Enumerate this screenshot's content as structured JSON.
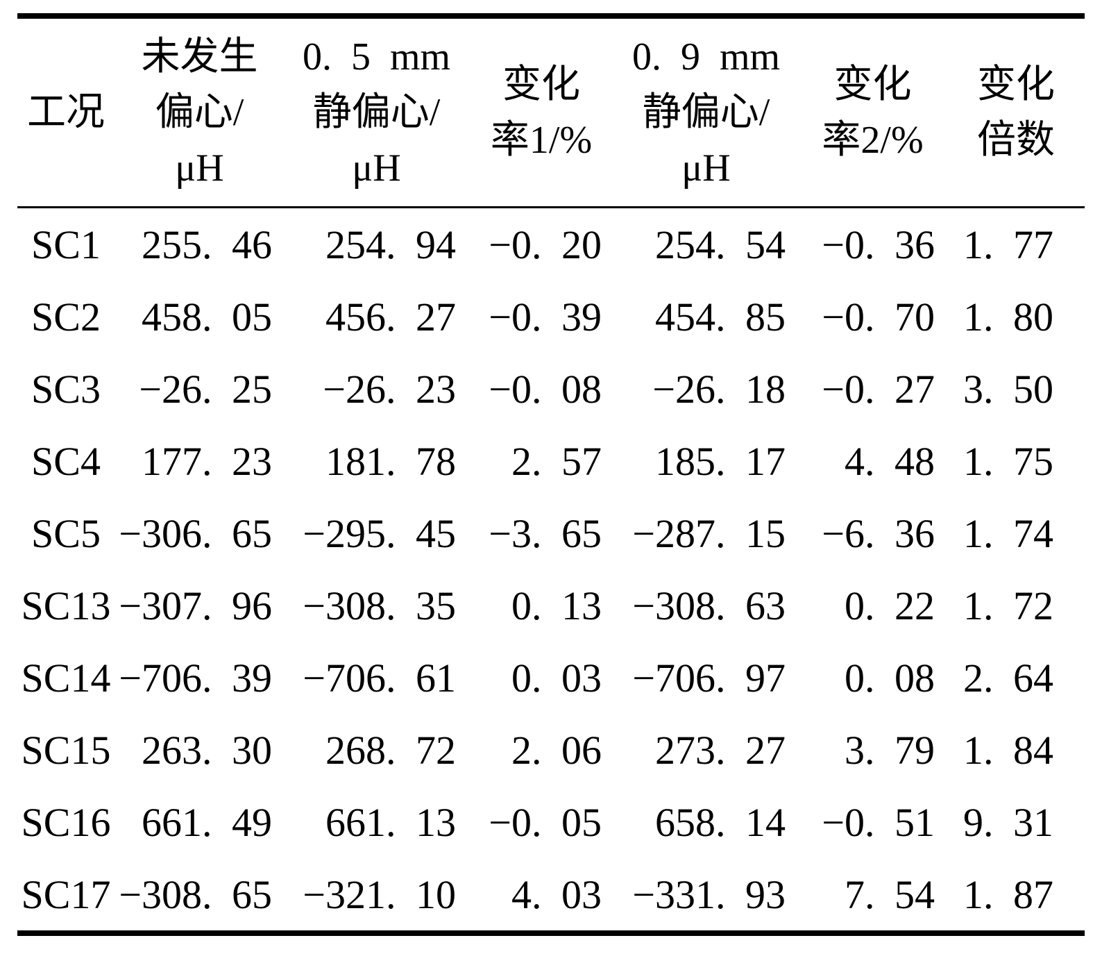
{
  "table": {
    "columns": [
      {
        "id": "condition",
        "header_lines": [
          "工况"
        ]
      },
      {
        "id": "no-eccentricity-uh",
        "header_lines": [
          "未发生",
          "偏心/",
          "μH"
        ]
      },
      {
        "id": "static-eccentricity-05mm-uh",
        "header_lines": [
          "0. 5 mm",
          "静偏心/",
          "μH"
        ]
      },
      {
        "id": "change-rate-1-percent",
        "header_lines": [
          "变化",
          "率1/%"
        ]
      },
      {
        "id": "static-eccentricity-09mm-uh",
        "header_lines": [
          "0. 9 mm",
          "静偏心/",
          "μH"
        ]
      },
      {
        "id": "change-rate-2-percent",
        "header_lines": [
          "变化",
          "率2/%"
        ]
      },
      {
        "id": "change-multiple",
        "header_lines": [
          "变化",
          "倍数"
        ]
      }
    ],
    "rows": [
      [
        "SC1",
        "255. 46",
        "254. 94",
        "−0. 20",
        "254. 54",
        "−0. 36",
        "1. 77"
      ],
      [
        "SC2",
        "458. 05",
        "456. 27",
        "−0. 39",
        "454. 85",
        "−0. 70",
        "1. 80"
      ],
      [
        "SC3",
        "−26. 25",
        "−26. 23",
        "−0. 08",
        "−26. 18",
        "−0. 27",
        "3. 50"
      ],
      [
        "SC4",
        "177. 23",
        "181. 78",
        "2. 57",
        "185. 17",
        "4. 48",
        "1. 75"
      ],
      [
        "SC5",
        "−306. 65",
        "−295. 45",
        "−3. 65",
        "−287. 15",
        "−6. 36",
        "1. 74"
      ],
      [
        "SC13",
        "−307. 96",
        "−308. 35",
        "0. 13",
        "−308. 63",
        "0. 22",
        "1. 72"
      ],
      [
        "SC14",
        "−706. 39",
        "−706. 61",
        "0. 03",
        "−706. 97",
        "0. 08",
        "2. 64"
      ],
      [
        "SC15",
        "263. 30",
        "268. 72",
        "2. 06",
        "273. 27",
        "3. 79",
        "1. 84"
      ],
      [
        "SC16",
        "661. 49",
        "661. 13",
        "−0. 05",
        "658. 14",
        "−0. 51",
        "9. 31"
      ],
      [
        "SC17",
        "−308. 65",
        "−321. 10",
        "4. 03",
        "−331. 93",
        "7. 54",
        "1. 87"
      ]
    ]
  }
}
